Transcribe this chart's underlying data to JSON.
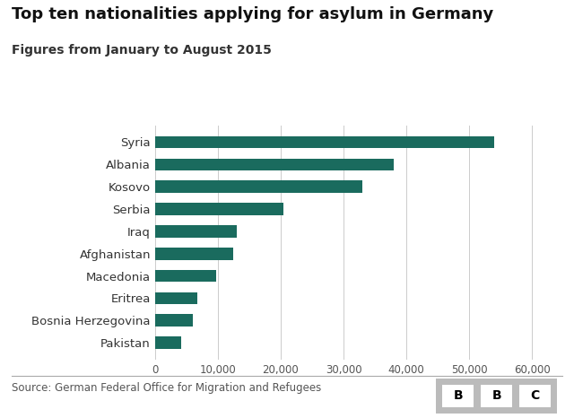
{
  "title": "Top ten nationalities applying for asylum in Germany",
  "subtitle": "Figures from January to August 2015",
  "source": "Source: German Federal Office for Migration and Refugees",
  "categories": [
    "Syria",
    "Albania",
    "Kosovo",
    "Serbia",
    "Iraq",
    "Afghanistan",
    "Macedonia",
    "Eritrea",
    "Bosnia Herzegovina",
    "Pakistan"
  ],
  "values": [
    54000,
    38000,
    33000,
    20500,
    13000,
    12500,
    9800,
    6700,
    6000,
    4100
  ],
  "bar_color": "#1a6b5e",
  "background_color": "#ffffff",
  "xlim": [
    0,
    63000
  ],
  "xticks": [
    0,
    10000,
    20000,
    30000,
    40000,
    50000,
    60000
  ],
  "title_fontsize": 13,
  "subtitle_fontsize": 10,
  "source_fontsize": 8.5,
  "tick_fontsize": 8.5,
  "label_fontsize": 9.5
}
